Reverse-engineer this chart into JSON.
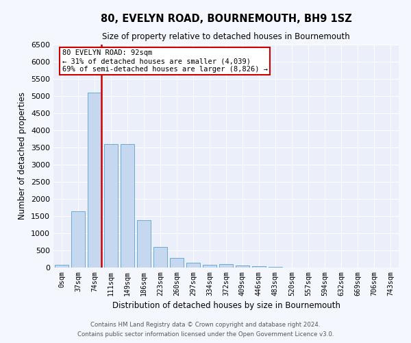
{
  "title": "80, EVELYN ROAD, BOURNEMOUTH, BH9 1SZ",
  "subtitle": "Size of property relative to detached houses in Bournemouth",
  "xlabel": "Distribution of detached houses by size in Bournemouth",
  "ylabel": "Number of detached properties",
  "categories": [
    "0sqm",
    "37sqm",
    "74sqm",
    "111sqm",
    "149sqm",
    "186sqm",
    "223sqm",
    "260sqm",
    "297sqm",
    "334sqm",
    "372sqm",
    "409sqm",
    "446sqm",
    "483sqm",
    "520sqm",
    "557sqm",
    "594sqm",
    "632sqm",
    "669sqm",
    "706sqm",
    "743sqm"
  ],
  "values": [
    80,
    1650,
    5100,
    3600,
    3600,
    1380,
    600,
    280,
    150,
    80,
    100,
    55,
    40,
    30,
    5,
    5,
    5,
    5,
    5,
    5,
    5
  ],
  "bar_color": "#c5d8f0",
  "bar_edge_color": "#6aaad4",
  "background_color": "#eaeff9",
  "grid_color": "#ffffff",
  "vline_color": "#cc0000",
  "vline_x": 2.4,
  "annotation_title": "80 EVELYN ROAD: 92sqm",
  "annotation_line1": "← 31% of detached houses are smaller (4,039)",
  "annotation_line2": "69% of semi-detached houses are larger (8,826) →",
  "annotation_box_edgecolor": "#cc0000",
  "footnote1": "Contains HM Land Registry data © Crown copyright and database right 2024.",
  "footnote2": "Contains public sector information licensed under the Open Government Licence v3.0.",
  "ylim": [
    0,
    6500
  ],
  "yticks": [
    0,
    500,
    1000,
    1500,
    2000,
    2500,
    3000,
    3500,
    4000,
    4500,
    5000,
    5500,
    6000,
    6500
  ],
  "fig_bg": "#f5f7ff"
}
